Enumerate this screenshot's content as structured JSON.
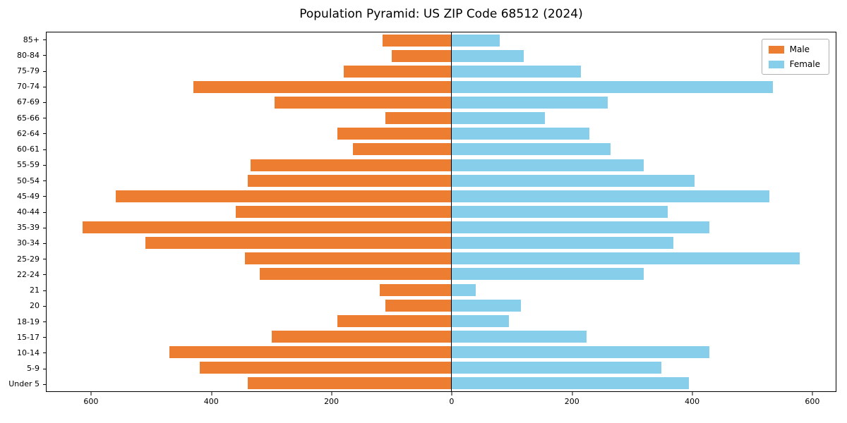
{
  "figure": {
    "title": "Population Pyramid: US ZIP Code 68512 (2024)",
    "background": "#ffffff"
  },
  "chart_data": {
    "type": "bar",
    "subtype": "population-pyramid",
    "title": "Population Pyramid: US ZIP Code 68512 (2024)",
    "categories": [
      "85+",
      "80-84",
      "75-79",
      "70-74",
      "67-69",
      "65-66",
      "62-64",
      "60-61",
      "55-59",
      "50-54",
      "45-49",
      "40-44",
      "35-39",
      "30-34",
      "25-29",
      "22-24",
      "21",
      "20",
      "18-19",
      "15-17",
      "10-14",
      "5-9",
      "Under 5"
    ],
    "series": [
      {
        "name": "Male",
        "side": "left",
        "color": "#ed7d31",
        "values": [
          115,
          100,
          180,
          430,
          295,
          110,
          190,
          165,
          335,
          340,
          560,
          360,
          615,
          510,
          345,
          320,
          120,
          110,
          190,
          300,
          470,
          420,
          340
        ]
      },
      {
        "name": "Female",
        "side": "right",
        "color": "#87ceeb",
        "values": [
          80,
          120,
          215,
          535,
          260,
          155,
          230,
          265,
          320,
          405,
          530,
          360,
          430,
          370,
          580,
          320,
          40,
          115,
          95,
          225,
          430,
          350,
          395
        ]
      }
    ],
    "xlim": [
      -675,
      640
    ],
    "x_tick_values": [
      -600,
      -400,
      -200,
      0,
      200,
      400,
      600
    ],
    "x_tick_labels": [
      "600",
      "400",
      "200",
      "0",
      "200",
      "400",
      "600"
    ],
    "grid": false,
    "legend_position": "upper right"
  }
}
